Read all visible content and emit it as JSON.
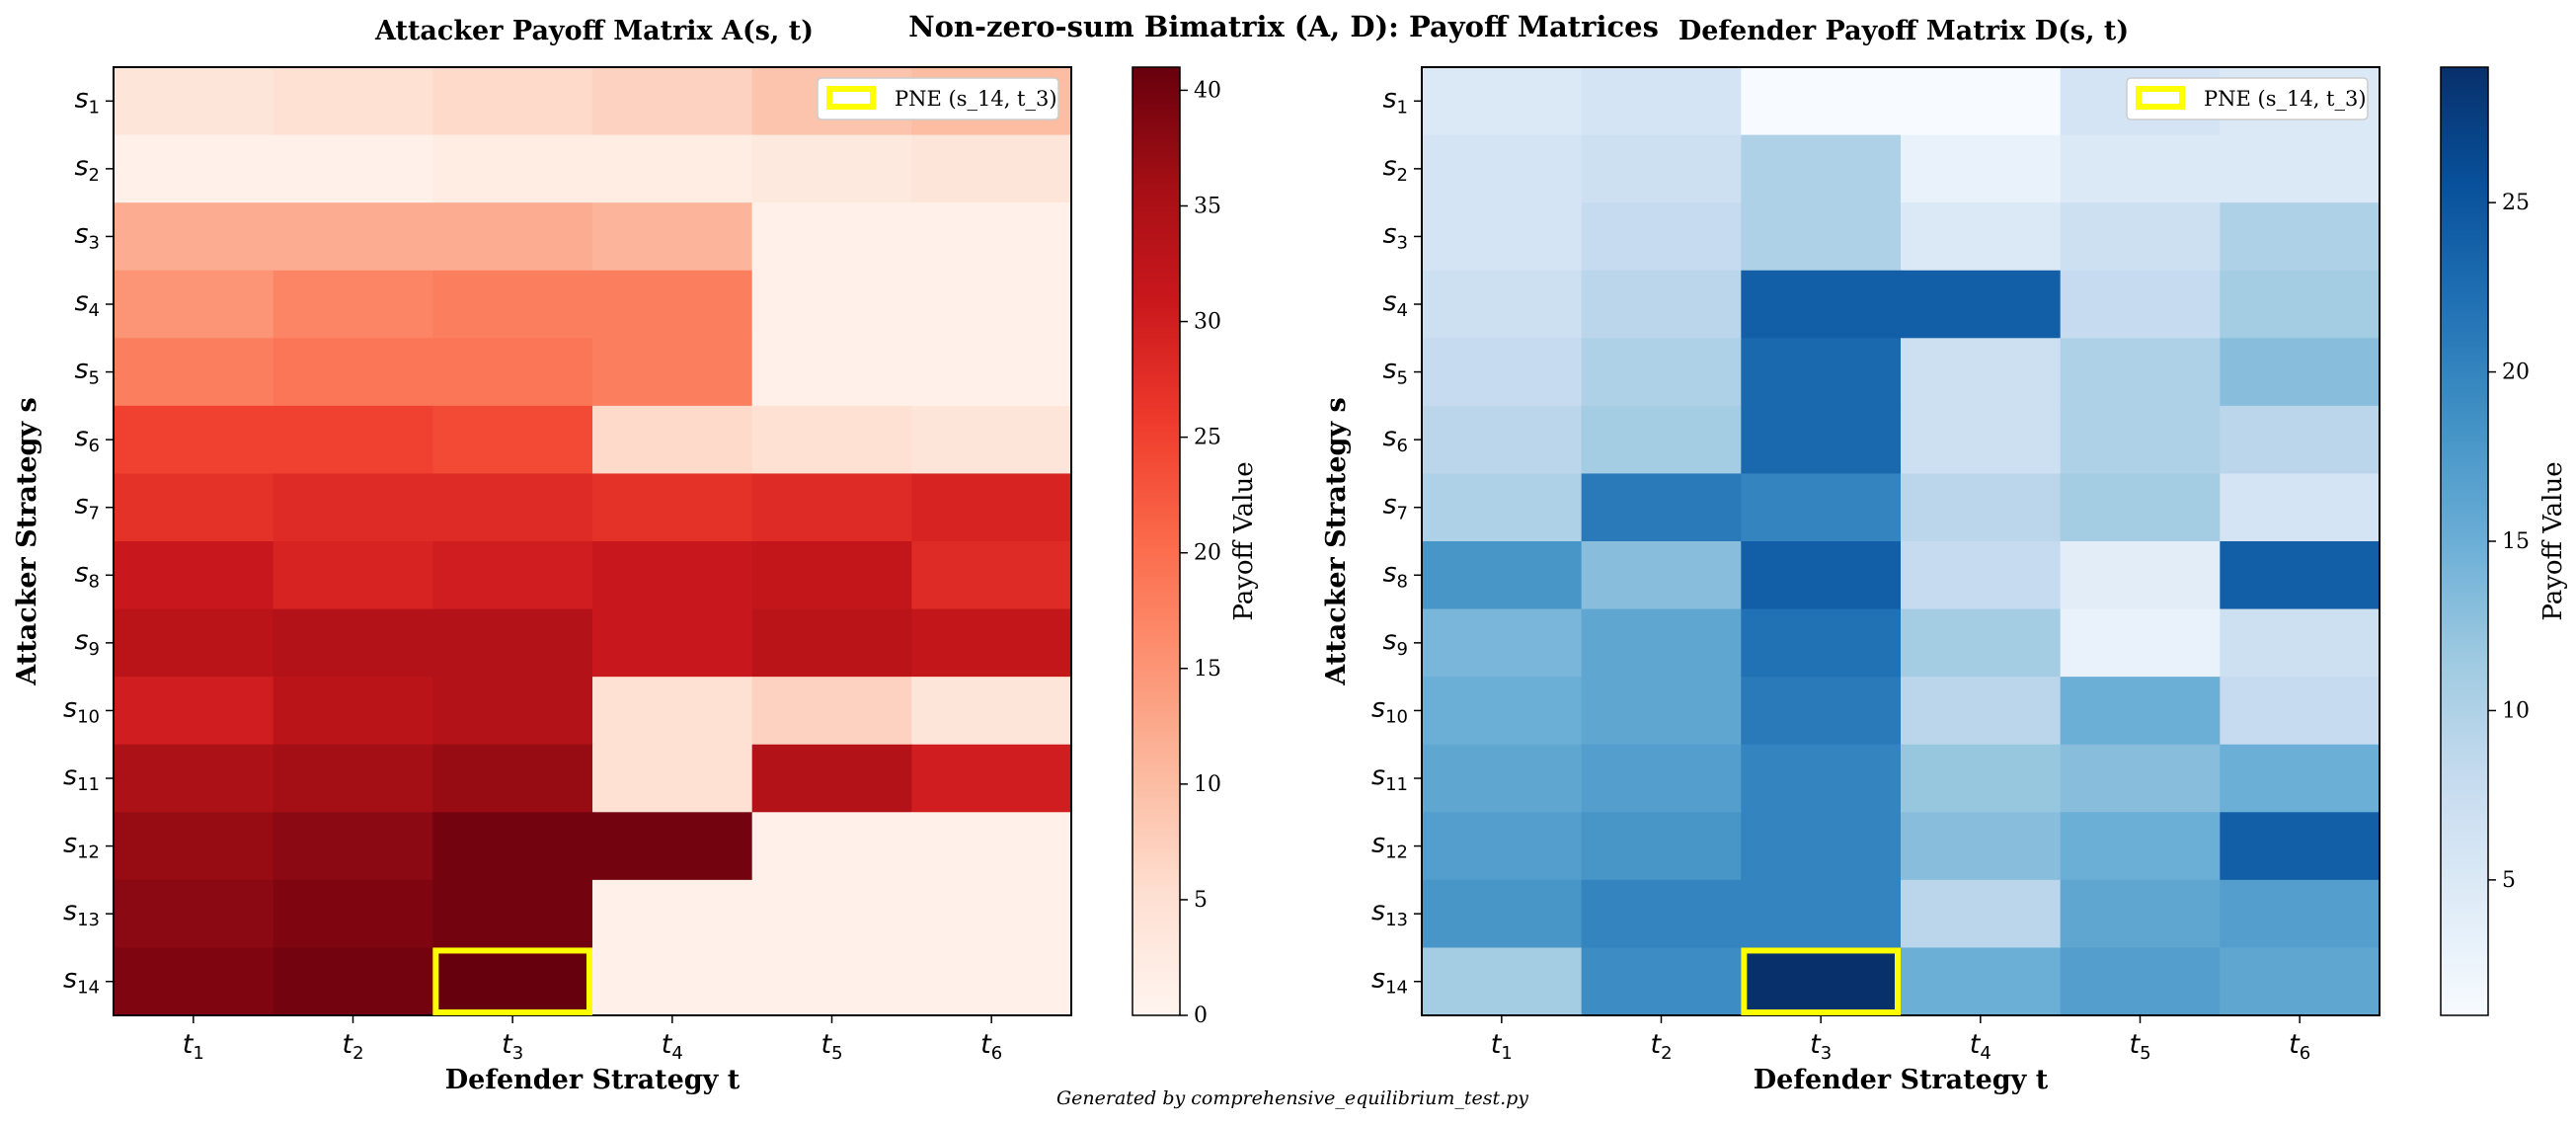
{
  "figure": {
    "suptitle": "Non-zero-sum Bimatrix (A, D): Payoff Matrices",
    "footer": "Generated by comprehensive_equilibrium_test.py"
  },
  "chart_data": [
    {
      "type": "heatmap",
      "title": "Attacker Payoff Matrix A(s, t)",
      "xlabel": "Defender Strategy t",
      "ylabel": "Attacker Strategy s",
      "colormap": "Reds",
      "colorbar": {
        "label": "Payoff Value",
        "range": [
          0,
          41
        ],
        "ticks": [
          0,
          5,
          10,
          15,
          20,
          25,
          30,
          35,
          40
        ]
      },
      "categories_x": [
        "t1",
        "t2",
        "t3",
        "t4",
        "t5",
        "t6"
      ],
      "categories_y": [
        "s1",
        "s2",
        "s3",
        "s4",
        "s5",
        "s6",
        "s7",
        "s8",
        "s9",
        "s10",
        "s11",
        "s12",
        "s13",
        "s14"
      ],
      "values": [
        [
          4,
          5,
          6,
          7,
          9,
          10
        ],
        [
          1,
          1,
          2,
          2,
          3,
          4
        ],
        [
          12,
          12,
          12,
          11,
          1,
          1
        ],
        [
          15,
          17,
          18,
          18,
          1,
          1
        ],
        [
          18,
          19,
          19,
          18,
          1,
          1
        ],
        [
          25,
          25,
          24,
          6,
          5,
          4
        ],
        [
          27,
          28,
          28,
          27,
          28,
          29
        ],
        [
          31,
          29,
          30,
          31,
          32,
          28
        ],
        [
          33,
          34,
          34,
          31,
          33,
          32
        ],
        [
          30,
          33,
          34,
          5,
          7,
          4
        ],
        [
          35,
          36,
          37,
          5,
          34,
          30
        ],
        [
          37,
          38,
          40,
          40,
          1,
          1
        ],
        [
          38,
          39,
          40,
          1,
          1,
          1
        ],
        [
          39,
          40,
          41,
          1,
          1,
          1
        ]
      ],
      "highlight": {
        "row": 14,
        "col": 3,
        "legend": "PNE (s_14, t_3)",
        "color": "#FFFF00"
      }
    },
    {
      "type": "heatmap",
      "title": "Defender Payoff Matrix D(s, t)",
      "xlabel": "Defender Strategy t",
      "ylabel": "Attacker Strategy s",
      "colormap": "Blues",
      "colorbar": {
        "label": "Payoff Value",
        "range": [
          1,
          29
        ],
        "ticks": [
          5,
          10,
          15,
          20,
          25
        ]
      },
      "categories_x": [
        "t1",
        "t2",
        "t3",
        "t4",
        "t5",
        "t6"
      ],
      "categories_y": [
        "s1",
        "s2",
        "s3",
        "s4",
        "s5",
        "s6",
        "s7",
        "s8",
        "s9",
        "s10",
        "s11",
        "s12",
        "s13",
        "s14"
      ],
      "values": [
        [
          5,
          6,
          1,
          1,
          6,
          5
        ],
        [
          6,
          7,
          10,
          3,
          5,
          5
        ],
        [
          6,
          8,
          10,
          5,
          7,
          10
        ],
        [
          7,
          9,
          24,
          24,
          8,
          11
        ],
        [
          8,
          10,
          23,
          7,
          10,
          13
        ],
        [
          9,
          11,
          23,
          7,
          10,
          9
        ],
        [
          10,
          21,
          20,
          9,
          11,
          6
        ],
        [
          18,
          13,
          24,
          8,
          4,
          24
        ],
        [
          14,
          16,
          22,
          11,
          3,
          7
        ],
        [
          15,
          16,
          21,
          9,
          15,
          8
        ],
        [
          16,
          17,
          20,
          12,
          13,
          15
        ],
        [
          17,
          18,
          20,
          13,
          15,
          24
        ],
        [
          18,
          20,
          20,
          9,
          16,
          17
        ],
        [
          11,
          19,
          29,
          15,
          17,
          16
        ]
      ],
      "highlight": {
        "row": 14,
        "col": 3,
        "legend": "PNE (s_14, t_3)",
        "color": "#FFFF00"
      }
    }
  ]
}
